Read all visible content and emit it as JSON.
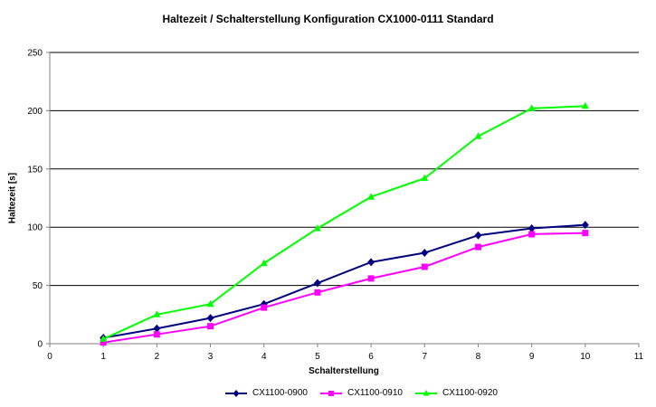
{
  "chart_data": {
    "type": "line",
    "title": "Haltezeit / Schalterstellung Konfiguration CX1000-0111 Standard",
    "xlabel": "Schalterstellung",
    "ylabel": "Haltezeit [s]",
    "xlim": [
      0,
      11
    ],
    "ylim": [
      0,
      250
    ],
    "x_ticks": [
      0,
      1,
      2,
      3,
      4,
      5,
      6,
      7,
      8,
      9,
      10,
      11
    ],
    "y_ticks": [
      0,
      50,
      100,
      150,
      200,
      250
    ],
    "grid": "horizontal",
    "legend_position": "bottom",
    "x": [
      1,
      2,
      3,
      4,
      5,
      6,
      7,
      8,
      9,
      10
    ],
    "series": [
      {
        "name": "CX1100-0900",
        "color": "#000080",
        "marker": "diamond",
        "values": [
          5,
          13,
          22,
          34,
          52,
          70,
          78,
          93,
          99,
          102
        ]
      },
      {
        "name": "CX1100-0910",
        "color": "#ff00ff",
        "marker": "square",
        "values": [
          1,
          8,
          15,
          31,
          44,
          56,
          66,
          83,
          94,
          95
        ]
      },
      {
        "name": "CX1100-0920",
        "color": "#00ff00",
        "marker": "triangle",
        "values": [
          4,
          25,
          34,
          69,
          99,
          126,
          142,
          178,
          202,
          204
        ]
      }
    ]
  }
}
